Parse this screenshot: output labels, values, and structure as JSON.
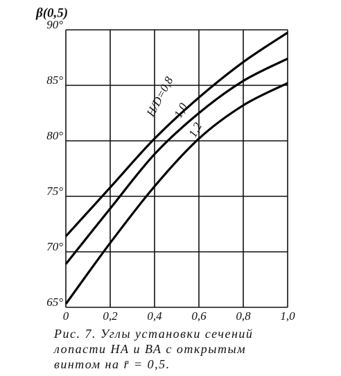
{
  "chart_data": {
    "type": "line",
    "ylabel": "β(0,5)",
    "x": [
      0,
      0.2,
      0.4,
      0.6,
      0.8,
      1.0
    ],
    "series": [
      {
        "name": "H/D=0,8",
        "color": "#000000",
        "values": [
          71.4,
          75.8,
          80.2,
          83.9,
          87.1,
          89.75
        ]
      },
      {
        "name": "1,0",
        "color": "#000000",
        "values": [
          68.9,
          73.9,
          78.8,
          82.5,
          85.4,
          87.4
        ]
      },
      {
        "name": "1,2",
        "color": "#000000",
        "values": [
          65.3,
          70.8,
          75.9,
          80.2,
          83.2,
          85.2
        ]
      }
    ],
    "xlim": [
      0,
      1.0
    ],
    "ylim": [
      65,
      90
    ],
    "xticks": [
      0,
      {
        "value": 0.2,
        "label": "0,2"
      },
      {
        "value": 0.4,
        "label": "0,4"
      },
      {
        "value": 0.6,
        "label": "0,6"
      },
      {
        "value": 0.8,
        "label": "0,8"
      },
      {
        "value": 1.0,
        "label": "1,0"
      }
    ],
    "yticks": [
      {
        "value": 65,
        "label": "65°"
      },
      {
        "value": 70,
        "label": "70°"
      },
      {
        "value": 75,
        "label": "75°"
      },
      {
        "value": 80,
        "label": "80°"
      },
      {
        "value": 85,
        "label": "85°"
      },
      {
        "value": 90,
        "label": "90°"
      }
    ],
    "grid": true,
    "caption": [
      "Рис. 7. Углы установки сечений",
      "лопасти НА и ВА с открытым",
      "винтом на r̄ = 0,5."
    ]
  }
}
